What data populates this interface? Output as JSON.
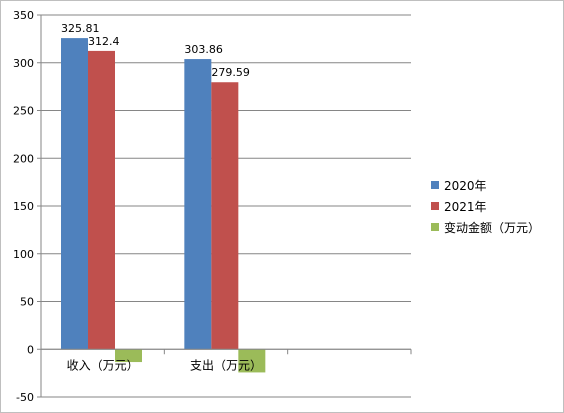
{
  "chart_data": {
    "type": "bar",
    "categories": [
      "收入（万元）",
      "支出（万元）",
      ""
    ],
    "series": [
      {
        "name": "2020年",
        "values": [
          325.81,
          303.86,
          null
        ],
        "color": "#4f81bd",
        "labels": [
          "325.81",
          "303.86",
          ""
        ]
      },
      {
        "name": "2021年",
        "values": [
          312.4,
          279.59,
          null
        ],
        "color": "#c0504d",
        "labels": [
          "312.4",
          "279.59",
          ""
        ]
      },
      {
        "name": "变动金额（万元）",
        "values": [
          -13.41,
          -24.27,
          null
        ],
        "color": "#9bbb59",
        "labels": [
          "",
          "",
          ""
        ]
      }
    ],
    "ylim": [
      -50,
      350
    ],
    "yticks": [
      -50,
      0,
      50,
      100,
      150,
      200,
      250,
      300,
      350
    ],
    "grid": true,
    "legend": "right"
  }
}
